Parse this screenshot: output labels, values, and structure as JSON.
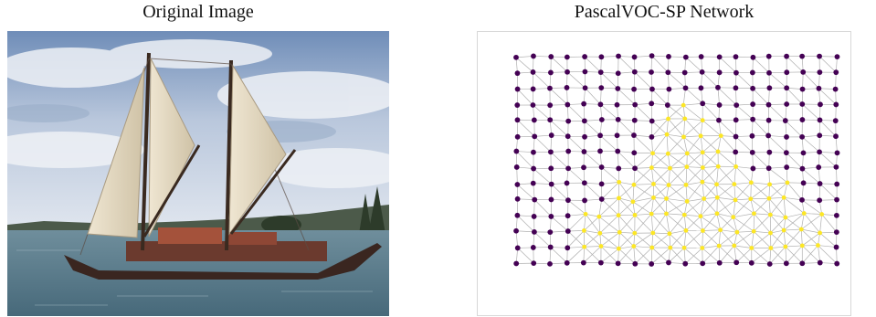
{
  "panels": {
    "left": {
      "title": "Original Image"
    },
    "right": {
      "title": "PascalVOC-SP Network"
    }
  },
  "colors": {
    "background_node": "#440154",
    "object_node": "#fde725",
    "edge": "#b0b0b0",
    "frame": "#d8d8d8"
  },
  "image_content": {
    "subject": "sailboat",
    "description_icon": "sailboat-photo-icon"
  }
}
